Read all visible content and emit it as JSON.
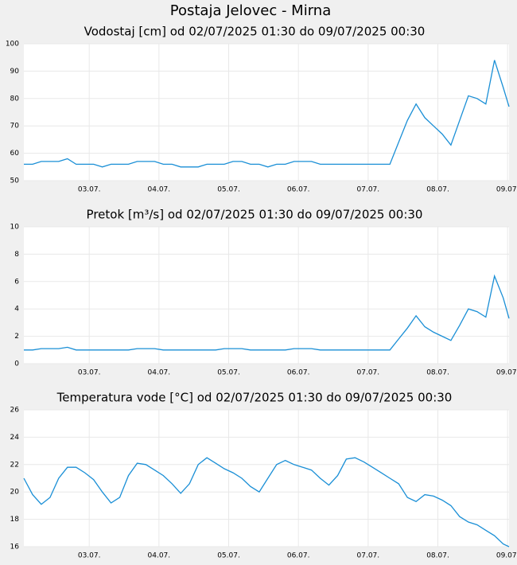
{
  "title": "Postaja Jelovec - Mirna",
  "chart_data": [
    {
      "type": "line",
      "title": "Vodostaj [cm] od 02/07/2025 01:30 do 09/07/2025 00:30",
      "x": [
        "2025-07-02T01:30",
        "2025-07-02T04:30",
        "2025-07-02T07:30",
        "2025-07-02T10:30",
        "2025-07-02T13:30",
        "2025-07-02T16:30",
        "2025-07-02T19:30",
        "2025-07-02T22:30",
        "2025-07-03T01:30",
        "2025-07-03T04:30",
        "2025-07-03T07:30",
        "2025-07-03T10:30",
        "2025-07-03T13:30",
        "2025-07-03T16:30",
        "2025-07-03T19:30",
        "2025-07-03T22:30",
        "2025-07-04T01:30",
        "2025-07-04T04:30",
        "2025-07-04T07:30",
        "2025-07-04T10:30",
        "2025-07-04T13:30",
        "2025-07-04T16:30",
        "2025-07-04T19:30",
        "2025-07-04T22:30",
        "2025-07-05T01:30",
        "2025-07-05T04:30",
        "2025-07-05T07:30",
        "2025-07-05T10:30",
        "2025-07-05T13:30",
        "2025-07-05T16:30",
        "2025-07-05T19:30",
        "2025-07-05T22:30",
        "2025-07-06T01:30",
        "2025-07-06T04:30",
        "2025-07-06T07:30",
        "2025-07-06T10:30",
        "2025-07-06T13:30",
        "2025-07-06T16:30",
        "2025-07-06T19:30",
        "2025-07-06T22:30",
        "2025-07-07T01:30",
        "2025-07-07T04:30",
        "2025-07-07T07:30",
        "2025-07-07T10:30",
        "2025-07-07T13:30",
        "2025-07-07T16:30",
        "2025-07-07T19:30",
        "2025-07-07T22:30",
        "2025-07-08T01:30",
        "2025-07-08T04:30",
        "2025-07-08T07:30",
        "2025-07-08T10:30",
        "2025-07-08T13:30",
        "2025-07-08T16:30",
        "2025-07-08T19:30",
        "2025-07-08T22:30",
        "2025-07-09T00:30"
      ],
      "series": [
        {
          "color": "#1a8fd6",
          "values": [
            56,
            56,
            57,
            57,
            57,
            58,
            56,
            56,
            56,
            55,
            56,
            56,
            56,
            57,
            57,
            57,
            56,
            56,
            55,
            55,
            55,
            56,
            56,
            56,
            57,
            57,
            56,
            56,
            55,
            56,
            56,
            57,
            57,
            57,
            56,
            56,
            56,
            56,
            56,
            56,
            56,
            56,
            56,
            64,
            72,
            78,
            73,
            70,
            67,
            63,
            72,
            81,
            80,
            78,
            94,
            84,
            77
          ]
        }
      ],
      "xlim": [
        "2025-07-02T01:30",
        "2025-07-09T00:30"
      ],
      "xticks": [
        {
          "value": "2025-07-03T00:00",
          "label": "03.07."
        },
        {
          "value": "2025-07-04T00:00",
          "label": "04.07."
        },
        {
          "value": "2025-07-05T00:00",
          "label": "05.07."
        },
        {
          "value": "2025-07-06T00:00",
          "label": "06.07."
        },
        {
          "value": "2025-07-07T00:00",
          "label": "07.07."
        },
        {
          "value": "2025-07-08T00:00",
          "label": "08.07."
        },
        {
          "value": "2025-07-09T00:00",
          "label": "09.07."
        }
      ],
      "ylim": [
        50,
        100
      ],
      "yticks": [
        50,
        60,
        70,
        80,
        90,
        100
      ],
      "grid": true
    },
    {
      "type": "line",
      "title": "Pretok [m³/s] od 02/07/2025 01:30 do 09/07/2025 00:30",
      "x": [
        "2025-07-02T01:30",
        "2025-07-02T04:30",
        "2025-07-02T07:30",
        "2025-07-02T10:30",
        "2025-07-02T13:30",
        "2025-07-02T16:30",
        "2025-07-02T19:30",
        "2025-07-02T22:30",
        "2025-07-03T01:30",
        "2025-07-03T04:30",
        "2025-07-03T07:30",
        "2025-07-03T10:30",
        "2025-07-03T13:30",
        "2025-07-03T16:30",
        "2025-07-03T19:30",
        "2025-07-03T22:30",
        "2025-07-04T01:30",
        "2025-07-04T04:30",
        "2025-07-04T07:30",
        "2025-07-04T10:30",
        "2025-07-04T13:30",
        "2025-07-04T16:30",
        "2025-07-04T19:30",
        "2025-07-04T22:30",
        "2025-07-05T01:30",
        "2025-07-05T04:30",
        "2025-07-05T07:30",
        "2025-07-05T10:30",
        "2025-07-05T13:30",
        "2025-07-05T16:30",
        "2025-07-05T19:30",
        "2025-07-05T22:30",
        "2025-07-06T01:30",
        "2025-07-06T04:30",
        "2025-07-06T07:30",
        "2025-07-06T10:30",
        "2025-07-06T13:30",
        "2025-07-06T16:30",
        "2025-07-06T19:30",
        "2025-07-06T22:30",
        "2025-07-07T01:30",
        "2025-07-07T04:30",
        "2025-07-07T07:30",
        "2025-07-07T10:30",
        "2025-07-07T13:30",
        "2025-07-07T16:30",
        "2025-07-07T19:30",
        "2025-07-07T22:30",
        "2025-07-08T01:30",
        "2025-07-08T04:30",
        "2025-07-08T07:30",
        "2025-07-08T10:30",
        "2025-07-08T13:30",
        "2025-07-08T16:30",
        "2025-07-08T19:30",
        "2025-07-08T22:30",
        "2025-07-09T00:30"
      ],
      "series": [
        {
          "color": "#1a8fd6",
          "values": [
            1.0,
            1.0,
            1.1,
            1.1,
            1.1,
            1.2,
            1.0,
            1.0,
            1.0,
            1.0,
            1.0,
            1.0,
            1.0,
            1.1,
            1.1,
            1.1,
            1.0,
            1.0,
            1.0,
            1.0,
            1.0,
            1.0,
            1.0,
            1.1,
            1.1,
            1.1,
            1.0,
            1.0,
            1.0,
            1.0,
            1.0,
            1.1,
            1.1,
            1.1,
            1.0,
            1.0,
            1.0,
            1.0,
            1.0,
            1.0,
            1.0,
            1.0,
            1.0,
            1.8,
            2.6,
            3.5,
            2.7,
            2.3,
            2.0,
            1.7,
            2.8,
            4.0,
            3.8,
            3.4,
            6.4,
            4.8,
            3.3
          ]
        }
      ],
      "xlim": [
        "2025-07-02T01:30",
        "2025-07-09T00:30"
      ],
      "xticks": [
        {
          "value": "2025-07-03T00:00",
          "label": "03.07."
        },
        {
          "value": "2025-07-04T00:00",
          "label": "04.07."
        },
        {
          "value": "2025-07-05T00:00",
          "label": "05.07."
        },
        {
          "value": "2025-07-06T00:00",
          "label": "06.07."
        },
        {
          "value": "2025-07-07T00:00",
          "label": "07.07."
        },
        {
          "value": "2025-07-08T00:00",
          "label": "08.07."
        },
        {
          "value": "2025-07-09T00:00",
          "label": "09.07."
        }
      ],
      "ylim": [
        0,
        10
      ],
      "yticks": [
        0,
        2,
        4,
        6,
        8,
        10
      ],
      "grid": true
    },
    {
      "type": "line",
      "title": "Temperatura vode [°C] od 02/07/2025 01:30 do 09/07/2025 00:30",
      "x": [
        "2025-07-02T01:30",
        "2025-07-02T04:30",
        "2025-07-02T07:30",
        "2025-07-02T10:30",
        "2025-07-02T13:30",
        "2025-07-02T16:30",
        "2025-07-02T19:30",
        "2025-07-02T22:30",
        "2025-07-03T01:30",
        "2025-07-03T04:30",
        "2025-07-03T07:30",
        "2025-07-03T10:30",
        "2025-07-03T13:30",
        "2025-07-03T16:30",
        "2025-07-03T19:30",
        "2025-07-03T22:30",
        "2025-07-04T01:30",
        "2025-07-04T04:30",
        "2025-07-04T07:30",
        "2025-07-04T10:30",
        "2025-07-04T13:30",
        "2025-07-04T16:30",
        "2025-07-04T19:30",
        "2025-07-04T22:30",
        "2025-07-05T01:30",
        "2025-07-05T04:30",
        "2025-07-05T07:30",
        "2025-07-05T10:30",
        "2025-07-05T13:30",
        "2025-07-05T16:30",
        "2025-07-05T19:30",
        "2025-07-05T22:30",
        "2025-07-06T01:30",
        "2025-07-06T04:30",
        "2025-07-06T07:30",
        "2025-07-06T10:30",
        "2025-07-06T13:30",
        "2025-07-06T16:30",
        "2025-07-06T19:30",
        "2025-07-06T22:30",
        "2025-07-07T01:30",
        "2025-07-07T04:30",
        "2025-07-07T07:30",
        "2025-07-07T10:30",
        "2025-07-07T13:30",
        "2025-07-07T16:30",
        "2025-07-07T19:30",
        "2025-07-07T22:30",
        "2025-07-08T01:30",
        "2025-07-08T04:30",
        "2025-07-08T07:30",
        "2025-07-08T10:30",
        "2025-07-08T13:30",
        "2025-07-08T16:30",
        "2025-07-08T19:30",
        "2025-07-08T22:30",
        "2025-07-09T00:30"
      ],
      "series": [
        {
          "color": "#1a8fd6",
          "values": [
            21.0,
            19.8,
            19.1,
            19.6,
            21.0,
            21.8,
            21.8,
            21.4,
            20.9,
            20.0,
            19.2,
            19.6,
            21.2,
            22.1,
            22.0,
            21.6,
            21.2,
            20.6,
            19.9,
            20.6,
            22.0,
            22.5,
            22.1,
            21.7,
            21.4,
            21.0,
            20.4,
            20.0,
            21.0,
            22.0,
            22.3,
            22.0,
            21.8,
            21.6,
            21.0,
            20.5,
            21.2,
            22.4,
            22.5,
            22.2,
            21.8,
            21.4,
            21.0,
            20.6,
            19.6,
            19.3,
            19.8,
            19.7,
            19.4,
            19.0,
            18.2,
            17.8,
            17.6,
            17.2,
            16.8,
            16.2,
            16.0
          ]
        }
      ],
      "xlim": [
        "2025-07-02T01:30",
        "2025-07-09T00:30"
      ],
      "xticks": [
        {
          "value": "2025-07-03T00:00",
          "label": "03.07."
        },
        {
          "value": "2025-07-04T00:00",
          "label": "04.07."
        },
        {
          "value": "2025-07-05T00:00",
          "label": "05.07."
        },
        {
          "value": "2025-07-06T00:00",
          "label": "06.07."
        },
        {
          "value": "2025-07-07T00:00",
          "label": "07.07."
        },
        {
          "value": "2025-07-08T00:00",
          "label": "08.07."
        },
        {
          "value": "2025-07-09T00:00",
          "label": "09.07."
        }
      ],
      "ylim": [
        16,
        26
      ],
      "yticks": [
        16,
        18,
        20,
        22,
        24,
        26
      ],
      "grid": true
    }
  ]
}
